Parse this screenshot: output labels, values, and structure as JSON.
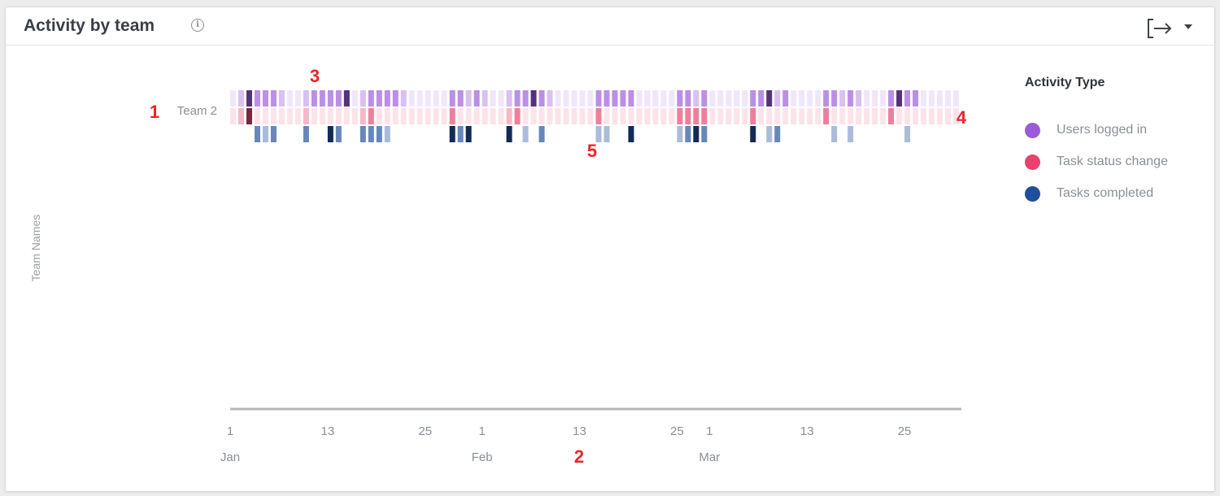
{
  "widget": {
    "title": "Activity by team",
    "info_icon": "info-circle-icon",
    "export_icon": "export-icon",
    "dropdown_icon": "caret-down-icon"
  },
  "legend": {
    "title": "Activity Type",
    "items": [
      {
        "label": "Users logged in",
        "color": "#9b5ad8"
      },
      {
        "label": "Task status change",
        "color": "#e8416d"
      },
      {
        "label": "Tasks completed",
        "color": "#1f4e9c"
      }
    ]
  },
  "annotations": [
    {
      "text": "1",
      "target": "team-label"
    },
    {
      "text": "2",
      "target": "x-axis"
    },
    {
      "text": "3",
      "target": "users-logged-in-row"
    },
    {
      "text": "4",
      "target": "row-end"
    },
    {
      "text": "5",
      "target": "tasks-completed-row"
    }
  ],
  "chart_data": {
    "type": "heatmap",
    "ylabel": "Team Names",
    "xlabel": "",
    "teams": [
      "Team 2"
    ],
    "x_start": "2023-01-01",
    "x_end": "2023-03-31",
    "x_ticks": [
      "1",
      "13",
      "25",
      "1",
      "13",
      "25",
      "1",
      "13",
      "25"
    ],
    "month_labels": [
      "Jan",
      "Feb",
      "Mar"
    ],
    "series": [
      {
        "name": "Users logged in",
        "color": "#9b5ad8",
        "values": [
          0,
          1,
          3,
          2,
          2,
          2,
          1,
          0,
          0,
          1,
          2,
          2,
          2,
          2,
          3,
          0,
          1,
          2,
          2,
          2,
          2,
          1,
          0,
          0,
          0,
          0,
          0,
          2,
          2,
          1,
          2,
          1,
          0,
          0,
          1,
          2,
          2,
          3,
          2,
          1,
          0,
          0,
          0,
          0,
          0,
          2,
          2,
          2,
          2,
          2,
          0,
          0,
          0,
          0,
          0,
          2,
          2,
          1,
          2,
          0,
          0,
          0,
          0,
          0,
          2,
          2,
          3,
          1,
          2,
          0,
          0,
          0,
          0,
          2,
          2,
          1,
          2,
          1,
          0,
          0,
          0,
          2,
          3,
          2,
          2,
          0,
          0,
          0,
          0,
          0,
          2,
          2,
          3,
          2,
          2,
          0
        ]
      },
      {
        "name": "Task status change",
        "color": "#e8416d",
        "values": [
          0,
          1,
          3,
          0,
          0,
          0,
          0,
          0,
          0,
          1,
          0,
          0,
          0,
          0,
          0,
          0,
          1,
          2,
          0,
          0,
          0,
          0,
          0,
          0,
          0,
          0,
          0,
          2,
          0,
          0,
          0,
          0,
          0,
          0,
          1,
          2,
          0,
          0,
          0,
          0,
          0,
          0,
          0,
          0,
          0,
          2,
          0,
          0,
          0,
          0,
          0,
          0,
          0,
          0,
          0,
          2,
          2,
          2,
          2,
          0,
          0,
          0,
          0,
          0,
          2,
          0,
          0,
          0,
          0,
          0,
          0,
          0,
          0,
          2,
          0,
          0,
          0,
          0,
          0,
          0,
          0,
          2,
          0,
          0,
          0,
          0,
          0,
          0,
          0,
          0,
          2,
          2,
          0,
          0,
          0,
          0
        ]
      },
      {
        "name": "Tasks completed",
        "color": "#1f4e9c",
        "values": [
          0,
          0,
          0,
          2,
          1,
          2,
          0,
          0,
          0,
          2,
          0,
          0,
          3,
          2,
          0,
          0,
          2,
          2,
          2,
          1,
          0,
          0,
          0,
          0,
          0,
          0,
          0,
          3,
          2,
          3,
          0,
          0,
          0,
          0,
          3,
          0,
          1,
          0,
          2,
          0,
          0,
          0,
          0,
          0,
          0,
          1,
          1,
          0,
          0,
          3,
          0,
          0,
          0,
          0,
          0,
          1,
          2,
          3,
          2,
          0,
          0,
          0,
          0,
          0,
          3,
          0,
          1,
          2,
          0,
          0,
          0,
          0,
          0,
          0,
          1,
          0,
          1,
          0,
          0,
          0,
          0,
          0,
          0,
          1,
          0,
          0,
          0,
          0,
          0,
          0,
          2,
          0,
          1,
          0,
          0,
          0
        ]
      }
    ]
  }
}
